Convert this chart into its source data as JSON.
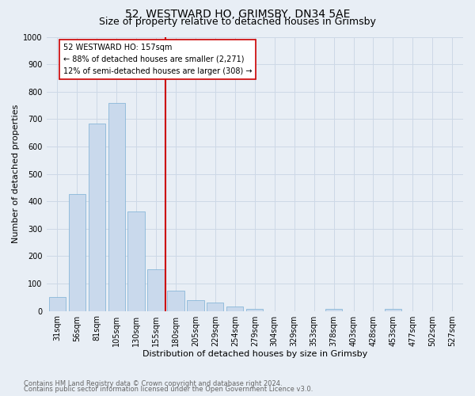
{
  "title": "52, WESTWARD HO, GRIMSBY, DN34 5AE",
  "subtitle": "Size of property relative to detached houses in Grimsby",
  "xlabel": "Distribution of detached houses by size in Grimsby",
  "ylabel": "Number of detached properties",
  "footnote1": "Contains HM Land Registry data © Crown copyright and database right 2024.",
  "footnote2": "Contains public sector information licensed under the Open Government Licence v3.0.",
  "bar_labels": [
    "31sqm",
    "56sqm",
    "81sqm",
    "105sqm",
    "130sqm",
    "155sqm",
    "180sqm",
    "205sqm",
    "229sqm",
    "254sqm",
    "279sqm",
    "304sqm",
    "329sqm",
    "353sqm",
    "378sqm",
    "403sqm",
    "428sqm",
    "453sqm",
    "477sqm",
    "502sqm",
    "527sqm"
  ],
  "bar_values": [
    50,
    425,
    685,
    758,
    362,
    152,
    73,
    40,
    30,
    16,
    8,
    0,
    0,
    0,
    8,
    0,
    0,
    8,
    0,
    0,
    0
  ],
  "bar_color": "#c9d9ec",
  "bar_edge_color": "#7aafd4",
  "grid_color": "#cdd8e6",
  "background_color": "#e8eef5",
  "vline_x": 5.5,
  "vline_color": "#cc0000",
  "annotation_text": "52 WESTWARD HO: 157sqm\n← 88% of detached houses are smaller (2,271)\n12% of semi-detached houses are larger (308) →",
  "annotation_box_color": "#ffffff",
  "annotation_box_edge": "#cc0000",
  "ylim": [
    0,
    1000
  ],
  "yticks": [
    0,
    100,
    200,
    300,
    400,
    500,
    600,
    700,
    800,
    900,
    1000
  ],
  "title_fontsize": 10,
  "subtitle_fontsize": 9,
  "axis_fontsize": 8,
  "tick_fontsize": 7,
  "annot_fontsize": 7,
  "footnote_fontsize": 6,
  "footnote_color": "#666666"
}
